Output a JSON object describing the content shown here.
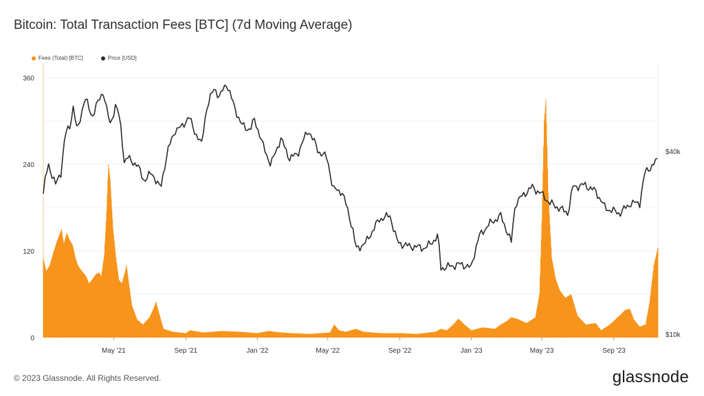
{
  "title": "Bitcoin: Total Transaction Fees [BTC] (7d Moving Average)",
  "legend": [
    {
      "label": "Fees (Total) [BTC]",
      "color": "#f7931a"
    },
    {
      "label": "Price [USD]",
      "color": "#2b2b2b"
    }
  ],
  "footer": "© 2023 Glassnode. All Rights Reserved.",
  "brand": "glassnode",
  "chart_data": {
    "type": "area",
    "title": "Bitcoin: Total Transaction Fees [BTC] (7d Moving Average)",
    "grid": true,
    "legend_position": "top-left",
    "x_ticks": [
      "May '21",
      "Sep '21",
      "Jan '22",
      "May '22",
      "Sep '22",
      "Jan '23",
      "May '23",
      "Sep '23"
    ],
    "x_range": [
      "2021-01-01",
      "2023-11-15"
    ],
    "y_left": {
      "ticks": [
        0,
        120,
        240,
        360
      ],
      "range": [
        0,
        380
      ]
    },
    "y_right": {
      "ticks": [
        "$10k",
        "$40k"
      ],
      "tick_values": [
        10000,
        40000
      ],
      "scale": "log"
    },
    "series": [
      {
        "name": "Fees (Total) [BTC]",
        "axis": "left",
        "color": "#f7931a",
        "style": "area",
        "points": [
          [
            "2021-01-01",
            110
          ],
          [
            "2021-01-06",
            92
          ],
          [
            "2021-01-12",
            100
          ],
          [
            "2021-01-19",
            120
          ],
          [
            "2021-01-25",
            135
          ],
          [
            "2021-02-01",
            150
          ],
          [
            "2021-02-05",
            130
          ],
          [
            "2021-02-10",
            145
          ],
          [
            "2021-02-15",
            135
          ],
          [
            "2021-02-20",
            128
          ],
          [
            "2021-02-25",
            110
          ],
          [
            "2021-03-01",
            100
          ],
          [
            "2021-03-05",
            95
          ],
          [
            "2021-03-10",
            90
          ],
          [
            "2021-03-15",
            85
          ],
          [
            "2021-03-20",
            75
          ],
          [
            "2021-03-25",
            80
          ],
          [
            "2021-04-01",
            88
          ],
          [
            "2021-04-06",
            90
          ],
          [
            "2021-04-10",
            85
          ],
          [
            "2021-04-15",
            115
          ],
          [
            "2021-04-19",
            175
          ],
          [
            "2021-04-22",
            240
          ],
          [
            "2021-04-25",
            220
          ],
          [
            "2021-04-30",
            150
          ],
          [
            "2021-05-05",
            110
          ],
          [
            "2021-05-10",
            80
          ],
          [
            "2021-05-15",
            75
          ],
          [
            "2021-05-20",
            90
          ],
          [
            "2021-05-23",
            100
          ],
          [
            "2021-05-27",
            75
          ],
          [
            "2021-06-01",
            45
          ],
          [
            "2021-06-10",
            25
          ],
          [
            "2021-06-20",
            18
          ],
          [
            "2021-07-01",
            28
          ],
          [
            "2021-07-08",
            40
          ],
          [
            "2021-07-12",
            50
          ],
          [
            "2021-07-17",
            35
          ],
          [
            "2021-07-25",
            12
          ],
          [
            "2021-08-10",
            8
          ],
          [
            "2021-09-01",
            6
          ],
          [
            "2021-09-08",
            10
          ],
          [
            "2021-10-01",
            7
          ],
          [
            "2021-11-01",
            9
          ],
          [
            "2021-12-01",
            8
          ],
          [
            "2022-01-01",
            6
          ],
          [
            "2022-01-20",
            9
          ],
          [
            "2022-02-10",
            7
          ],
          [
            "2022-03-01",
            6
          ],
          [
            "2022-04-01",
            5
          ],
          [
            "2022-05-05",
            7
          ],
          [
            "2022-05-12",
            18
          ],
          [
            "2022-05-20",
            10
          ],
          [
            "2022-06-01",
            8
          ],
          [
            "2022-06-18",
            12
          ],
          [
            "2022-07-01",
            8
          ],
          [
            "2022-08-01",
            6
          ],
          [
            "2022-09-01",
            6
          ],
          [
            "2022-10-01",
            5
          ],
          [
            "2022-11-01",
            8
          ],
          [
            "2022-11-10",
            12
          ],
          [
            "2022-11-20",
            10
          ],
          [
            "2022-12-01",
            18
          ],
          [
            "2022-12-10",
            26
          ],
          [
            "2022-12-20",
            18
          ],
          [
            "2023-01-01",
            10
          ],
          [
            "2023-01-20",
            14
          ],
          [
            "2023-02-10",
            12
          ],
          [
            "2023-02-20",
            18
          ],
          [
            "2023-03-01",
            22
          ],
          [
            "2023-03-10",
            28
          ],
          [
            "2023-03-20",
            26
          ],
          [
            "2023-04-05",
            20
          ],
          [
            "2023-04-20",
            28
          ],
          [
            "2023-04-27",
            60
          ],
          [
            "2023-05-01",
            160
          ],
          [
            "2023-05-05",
            300
          ],
          [
            "2023-05-08",
            330
          ],
          [
            "2023-05-12",
            200
          ],
          [
            "2023-05-18",
            110
          ],
          [
            "2023-05-25",
            80
          ],
          [
            "2023-06-01",
            65
          ],
          [
            "2023-06-10",
            55
          ],
          [
            "2023-06-20",
            60
          ],
          [
            "2023-07-01",
            30
          ],
          [
            "2023-07-15",
            18
          ],
          [
            "2023-08-01",
            20
          ],
          [
            "2023-08-10",
            10
          ],
          [
            "2023-08-25",
            18
          ],
          [
            "2023-09-10",
            30
          ],
          [
            "2023-09-20",
            38
          ],
          [
            "2023-09-28",
            40
          ],
          [
            "2023-10-05",
            25
          ],
          [
            "2023-10-15",
            15
          ],
          [
            "2023-10-25",
            18
          ],
          [
            "2023-11-01",
            50
          ],
          [
            "2023-11-08",
            100
          ],
          [
            "2023-11-15",
            125
          ]
        ]
      },
      {
        "name": "Price [USD]",
        "axis": "right",
        "color": "#2b2b2b",
        "style": "line",
        "points": [
          [
            "2021-01-01",
            29000
          ],
          [
            "2021-01-05",
            33000
          ],
          [
            "2021-01-10",
            36000
          ],
          [
            "2021-01-22",
            31000
          ],
          [
            "2021-01-31",
            34000
          ],
          [
            "2021-02-08",
            46000
          ],
          [
            "2021-02-15",
            48000
          ],
          [
            "2021-02-21",
            56000
          ],
          [
            "2021-02-28",
            46000
          ],
          [
            "2021-03-13",
            60000
          ],
          [
            "2021-03-25",
            52000
          ],
          [
            "2021-04-13",
            63000
          ],
          [
            "2021-04-18",
            56000
          ],
          [
            "2021-04-25",
            49000
          ],
          [
            "2021-05-05",
            57000
          ],
          [
            "2021-05-12",
            50000
          ],
          [
            "2021-05-19",
            37000
          ],
          [
            "2021-05-25",
            38000
          ],
          [
            "2021-06-10",
            36000
          ],
          [
            "2021-06-22",
            32000
          ],
          [
            "2021-07-05",
            34000
          ],
          [
            "2021-07-20",
            30000
          ],
          [
            "2021-08-01",
            40000
          ],
          [
            "2021-08-14",
            47000
          ],
          [
            "2021-08-25",
            48000
          ],
          [
            "2021-09-06",
            52000
          ],
          [
            "2021-09-15",
            47000
          ],
          [
            "2021-09-28",
            42000
          ],
          [
            "2021-10-06",
            55000
          ],
          [
            "2021-10-20",
            65000
          ],
          [
            "2021-10-28",
            60000
          ],
          [
            "2021-11-09",
            67000
          ],
          [
            "2021-11-20",
            58000
          ],
          [
            "2021-12-04",
            49000
          ],
          [
            "2021-12-20",
            47000
          ],
          [
            "2021-12-27",
            51000
          ],
          [
            "2022-01-10",
            42000
          ],
          [
            "2022-01-24",
            36000
          ],
          [
            "2022-02-10",
            44000
          ],
          [
            "2022-02-24",
            38000
          ],
          [
            "2022-03-10",
            39000
          ],
          [
            "2022-03-29",
            47000
          ],
          [
            "2022-04-15",
            40000
          ],
          [
            "2022-04-30",
            38000
          ],
          [
            "2022-05-10",
            30000
          ],
          [
            "2022-05-25",
            29500
          ],
          [
            "2022-06-13",
            22000
          ],
          [
            "2022-06-18",
            19000
          ],
          [
            "2022-07-05",
            20000
          ],
          [
            "2022-07-29",
            24000
          ],
          [
            "2022-08-15",
            24500
          ],
          [
            "2022-08-28",
            20000
          ],
          [
            "2022-09-15",
            19500
          ],
          [
            "2022-10-15",
            19200
          ],
          [
            "2022-11-05",
            21000
          ],
          [
            "2022-11-10",
            16500
          ],
          [
            "2022-12-15",
            17000
          ],
          [
            "2022-12-31",
            16500
          ],
          [
            "2023-01-14",
            21000
          ],
          [
            "2023-01-31",
            23000
          ],
          [
            "2023-02-20",
            24500
          ],
          [
            "2023-03-10",
            20000
          ],
          [
            "2023-03-17",
            27000
          ],
          [
            "2023-04-14",
            30500
          ],
          [
            "2023-04-30",
            29000
          ],
          [
            "2023-05-15",
            27000
          ],
          [
            "2023-06-15",
            25000
          ],
          [
            "2023-06-23",
            30500
          ],
          [
            "2023-07-13",
            31000
          ],
          [
            "2023-08-01",
            29500
          ],
          [
            "2023-08-17",
            26000
          ],
          [
            "2023-09-11",
            25000
          ],
          [
            "2023-09-30",
            27000
          ],
          [
            "2023-10-15",
            27000
          ],
          [
            "2023-10-24",
            34000
          ],
          [
            "2023-11-09",
            36500
          ],
          [
            "2023-11-15",
            37500
          ]
        ]
      }
    ]
  }
}
